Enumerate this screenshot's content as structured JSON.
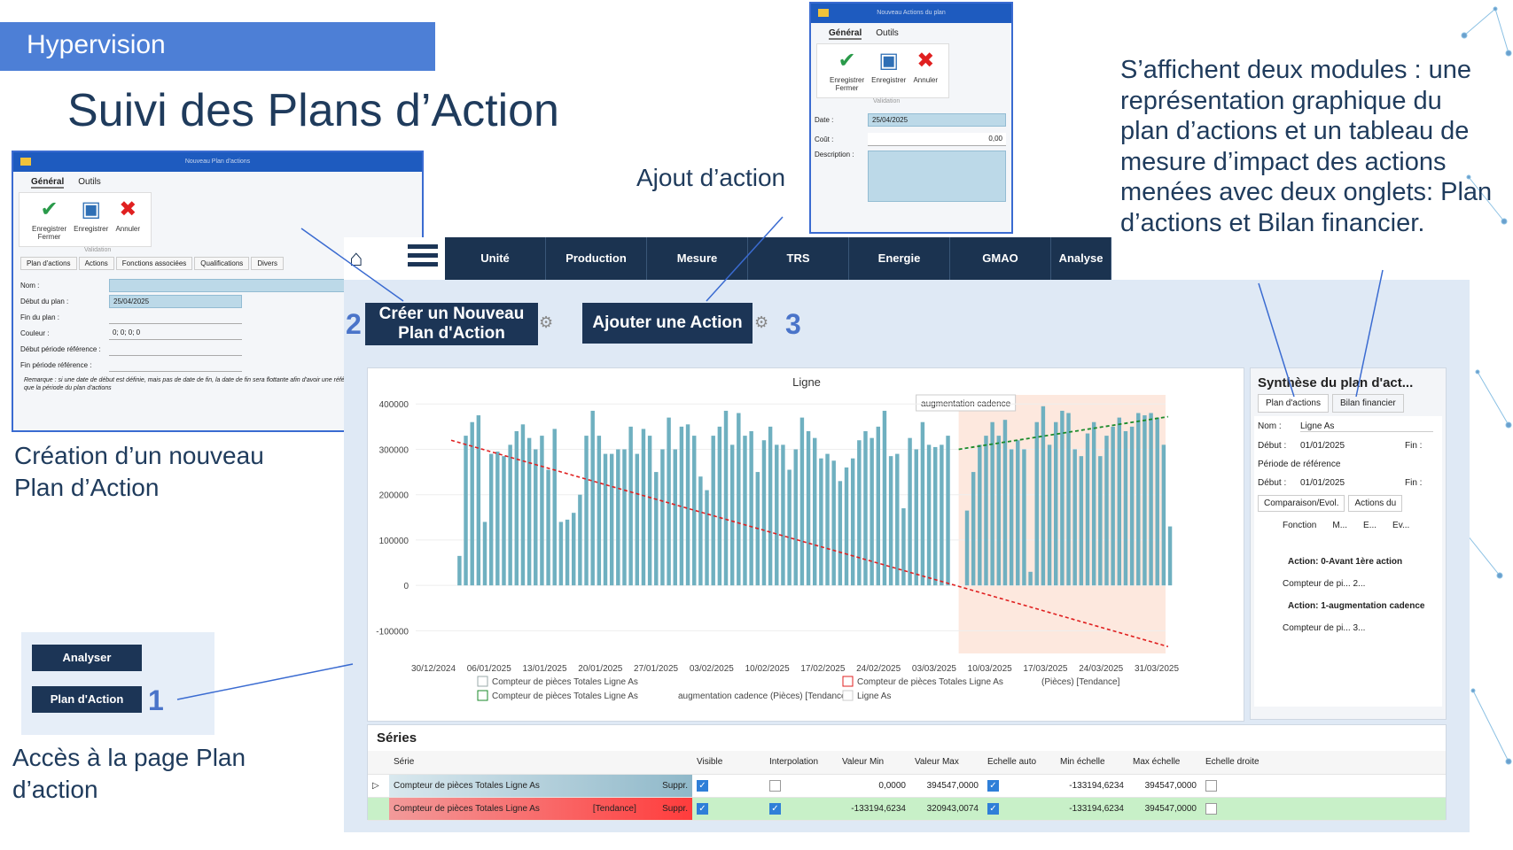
{
  "banner": "Hypervision",
  "title": "Suivi des Plans d’Action",
  "captions": {
    "creation": "Création d’un nouveau Plan d’Action",
    "ajout": "Ajout d’action",
    "acces": "Accès à la page Plan d’action",
    "right": "S’affichent deux modules : une représentation graphique du plan d’actions et un tableau de mesure d’impact des actions menées avec deux onglets: Plan d’actions et Bilan financier."
  },
  "markers": [
    "1",
    "2",
    "3"
  ],
  "plan_dialog": {
    "window_title": "Nouveau Plan d'actions",
    "tabs": [
      "Général",
      "Outils"
    ],
    "buttons": [
      "Enregistrer Fermer",
      "Enregistrer",
      "Annuler"
    ],
    "group_label": "Validation",
    "sub_tabs": [
      "Plan d'actions",
      "Actions",
      "Fonctions associées",
      "Qualifications",
      "Divers"
    ],
    "fields": [
      {
        "label": "Nom :",
        "value": ""
      },
      {
        "label": "Début du plan :",
        "value": "25/04/2025"
      },
      {
        "label": "Fin du plan :",
        "value": ""
      },
      {
        "label": "Couleur :",
        "value": "0; 0; 0; 0"
      },
      {
        "label": "Début période référence :",
        "value": ""
      },
      {
        "label": "Fin période référence :",
        "value": ""
      }
    ],
    "remark": "Remarque : si une date de début est définie, mais pas de date de fin, la date de fin sera flottante afin d'avoir une référence de même durée que la période du plan d'actions"
  },
  "action_dialog": {
    "window_title": "Nouveau Actions du plan",
    "tabs": [
      "Général",
      "Outils"
    ],
    "buttons": [
      "Enregistrer Fermer",
      "Enregistrer",
      "Annuler"
    ],
    "group_label": "Validation",
    "fields": [
      {
        "label": "Date :",
        "value": "25/04/2025"
      },
      {
        "label": "Coût :",
        "value": "0,00"
      },
      {
        "label": "Description :",
        "value": ""
      }
    ]
  },
  "nav": [
    "Unité",
    "Production",
    "Mesure",
    "TRS",
    "Energie",
    "GMAO",
    "Analyse"
  ],
  "buttons": {
    "create_plan": "Créer un Nouveau Plan d'Action",
    "add_action": "Ajouter une Action",
    "analyser": "Analyser",
    "plan_action": "Plan d'Action"
  },
  "chart_data": {
    "type": "bar",
    "title": "Ligne",
    "annotation": "augmentation cadence",
    "ylim": [
      -150000,
      420000
    ],
    "yticks": [
      400000,
      300000,
      200000,
      100000,
      0,
      -100000
    ],
    "xticks": [
      "30/12/2024",
      "06/01/2025",
      "13/01/2025",
      "20/01/2025",
      "27/01/2025",
      "03/02/2025",
      "10/02/2025",
      "17/02/2025",
      "24/02/2025",
      "03/03/2025",
      "10/03/2025",
      "17/03/2025",
      "24/03/2025",
      "31/03/2025"
    ],
    "values": [
      0,
      65000,
      330000,
      360000,
      375000,
      140000,
      290000,
      295000,
      285000,
      310000,
      340000,
      355000,
      325000,
      300000,
      330000,
      255000,
      345000,
      140000,
      145000,
      160000,
      200000,
      330000,
      385000,
      330000,
      290000,
      290000,
      300000,
      300000,
      350000,
      290000,
      345000,
      330000,
      250000,
      300000,
      370000,
      300000,
      350000,
      355000,
      330000,
      240000,
      210000,
      330000,
      350000,
      385000,
      310000,
      380000,
      330000,
      340000,
      250000,
      320000,
      350000,
      310000,
      310000,
      255000,
      300000,
      370000,
      340000,
      325000,
      280000,
      290000,
      275000,
      230000,
      260000,
      280000,
      320000,
      340000,
      325000,
      350000,
      385000,
      285000,
      290000,
      170000,
      325000,
      300000,
      360000,
      310000,
      305000,
      310000,
      330000,
      0,
      0,
      165000,
      250000,
      310000,
      330000,
      360000,
      330000,
      365000,
      300000,
      320000,
      300000,
      30000,
      360000,
      395000,
      310000,
      360000,
      385000,
      380000,
      300000,
      285000,
      335000,
      360000,
      285000,
      330000,
      350000,
      370000,
      340000,
      350000,
      380000,
      375000,
      380000,
      370000,
      310000,
      130000
    ],
    "trend_down": {
      "start": 320000,
      "end": -135000
    },
    "trend_up": {
      "start": 300000,
      "end": 372000
    },
    "legend": [
      "Compteur de pièces Totales Ligne As",
      "Compteur de pièces Totales Ligne As",
      "augmentation cadence (Pièces) [Tendance]",
      "Compteur de pièces Totales Ligne As",
      "(Pièces) [Tendance]",
      "Ligne As"
    ]
  },
  "synthese": {
    "title": "Synthèse du plan d'act...",
    "tabs": [
      "Plan d'actions",
      "Bilan financier"
    ],
    "nom_label": "Nom :",
    "nom_value": "Ligne As",
    "debut_label": "Début :",
    "debut_value": "01/01/2025",
    "fin_label": "Fin :",
    "periode": "Période de référence",
    "debut2_value": "01/01/2025",
    "sub_tabs": [
      "Comparaison/Evol.",
      "Actions du"
    ],
    "cols": [
      "Fonction",
      "M...",
      "E...",
      "Ev..."
    ],
    "action0": "Action: 0-Avant 1ère action",
    "row0": "Compteur de pi...",
    "row0_val": "2...",
    "action1": "Action: 1-augmentation cadence",
    "row1": "Compteur de pi...",
    "row1_val": "3..."
  },
  "series": {
    "title": "Séries",
    "headers": [
      "Série",
      "Visible",
      "Interpolation",
      "Valeur Min",
      "Valeur Max",
      "Echelle auto",
      "Min échelle",
      "Max échelle",
      "Echelle droite"
    ],
    "rows": [
      {
        "name": "Compteur de pièces Totales Ligne As",
        "tag": "",
        "suppr": "Suppr.",
        "vmin": "0,0000",
        "vmax": "394547,0000",
        "emin": "-133194,6234",
        "emax": "394547,0000"
      },
      {
        "name": "Compteur de pièces Totales Ligne As",
        "tag": "[Tendance]",
        "suppr": "Suppr.",
        "vmin": "-133194,6234",
        "vmax": "320943,0074",
        "emin": "-133194,6234",
        "emax": "394547,0000"
      }
    ]
  }
}
